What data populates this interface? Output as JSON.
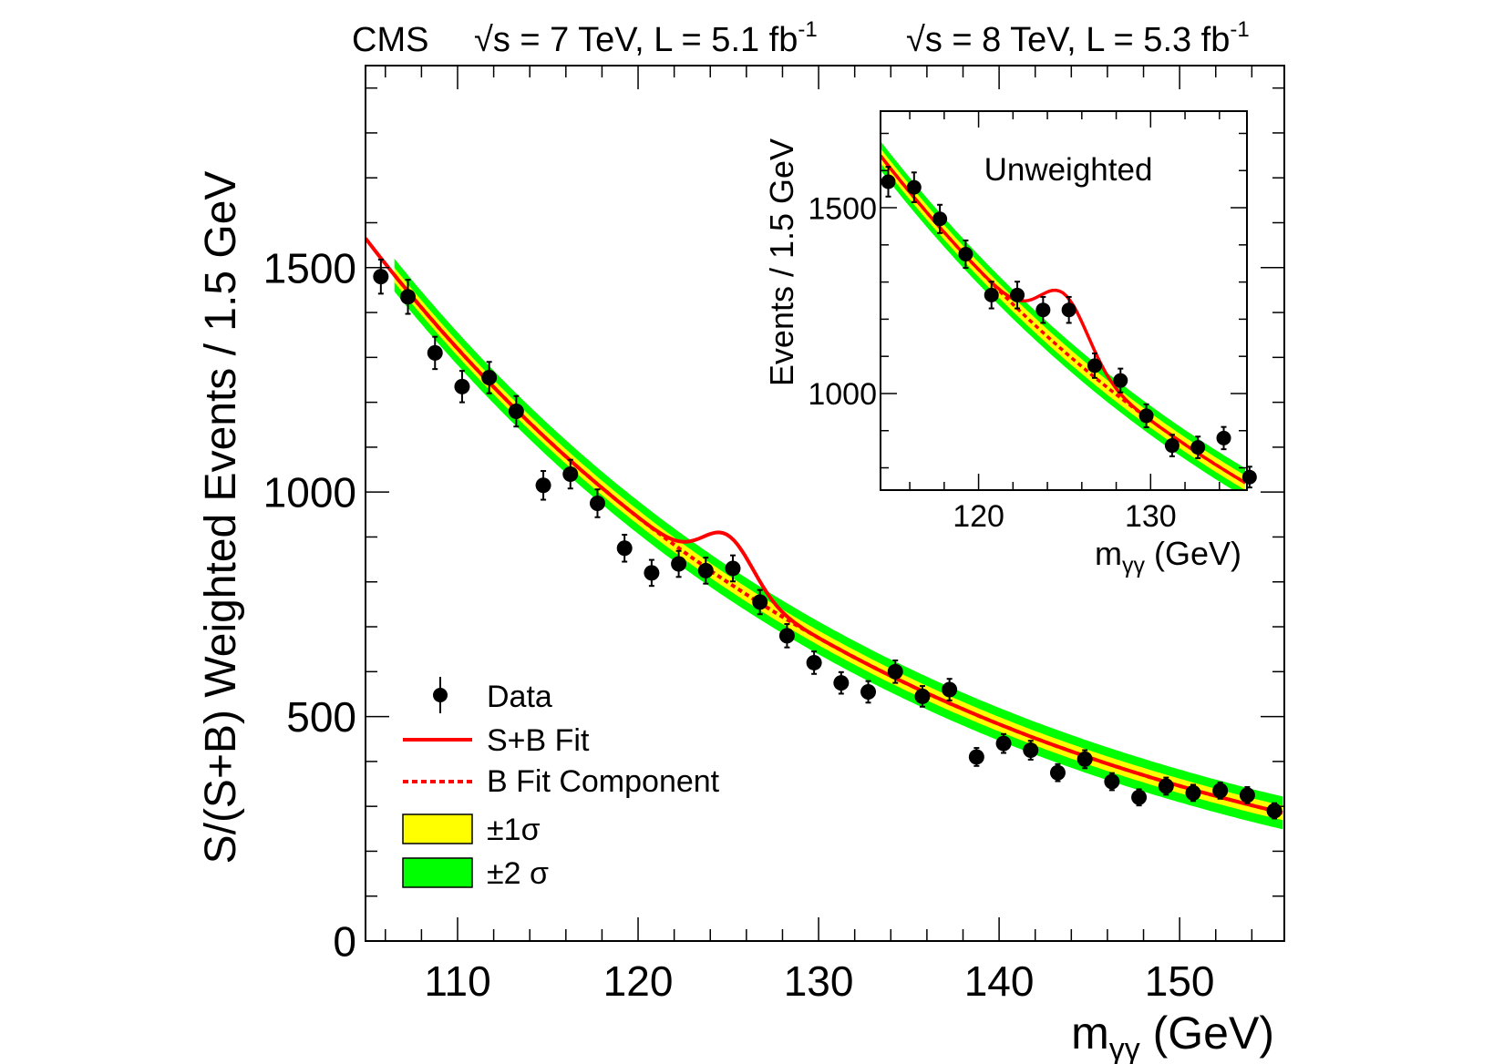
{
  "header": {
    "experiment": "CMS",
    "run1": "√s = 7 TeV, L = 5.1 fb",
    "run1_sup": "-1",
    "run2": "√s = 8 TeV, L = 5.3 fb",
    "run2_sup": "-1"
  },
  "legend": {
    "data": "Data",
    "sb_fit": "S+B Fit",
    "b_fit": "B Fit Component",
    "sigma1": "±1σ",
    "sigma2": "±2 σ"
  },
  "colors": {
    "fit": "#ff0000",
    "band1": "#ffff00",
    "band2": "#00ff00",
    "data": "#000000"
  },
  "chart_data": [
    {
      "type": "scatter",
      "title": "",
      "ylabel": "S/(S+B) Weighted Events / 1.5 GeV",
      "xlabel_main": "m",
      "xlabel_sub": "γγ",
      "xlabel_unit": " (GeV)",
      "xlim": [
        104.9,
        155.8
      ],
      "ylim": [
        0,
        1950
      ],
      "xticks": [
        110,
        120,
        130,
        140,
        150
      ],
      "yticks": [
        0,
        500,
        1000,
        1500
      ],
      "series": [
        {
          "name": "Data",
          "x": [
            105.75,
            107.25,
            108.75,
            110.25,
            111.75,
            113.25,
            114.75,
            116.25,
            117.75,
            119.25,
            120.75,
            122.25,
            123.75,
            125.25,
            126.75,
            128.25,
            129.75,
            131.25,
            132.75,
            134.25,
            135.75,
            137.25,
            138.75,
            140.25,
            141.75,
            143.25,
            144.75,
            146.25,
            147.75,
            149.25,
            150.75,
            152.25,
            153.75,
            155.25
          ],
          "y": [
            1480,
            1435,
            1310,
            1235,
            1255,
            1180,
            1015,
            1040,
            975,
            875,
            820,
            840,
            825,
            830,
            755,
            680,
            620,
            575,
            555,
            600,
            545,
            560,
            410,
            440,
            425,
            375,
            405,
            355,
            320,
            345,
            330,
            335,
            325,
            290
          ],
          "yerr": [
            38,
            38,
            36,
            35,
            35,
            34,
            32,
            32,
            31,
            30,
            29,
            29,
            29,
            29,
            27,
            26,
            25,
            24,
            24,
            25,
            23,
            24,
            20,
            21,
            21,
            19,
            20,
            19,
            18,
            19,
            18,
            18,
            18,
            17
          ]
        }
      ],
      "fit": {
        "background": {
          "a": 1560,
          "b": 0.0335,
          "x0": 105
        },
        "signal": {
          "mass": 125.0,
          "width": 1.4,
          "amplitude": 105
        },
        "band1_halfwidth": 8,
        "band2_halfwidth": 18
      }
    },
    {
      "type": "scatter",
      "title": "Unweighted",
      "ylabel": "Events / 1.5 GeV",
      "xlabel_main": "m",
      "xlabel_sub": "γγ",
      "xlabel_unit": " (GeV)",
      "xlim": [
        114.3,
        135.6
      ],
      "ylim": [
        740,
        1760
      ],
      "xticks": [
        120,
        130
      ],
      "yticks": [
        1000,
        1500
      ],
      "series": [
        {
          "name": "Data",
          "x": [
            114.75,
            116.25,
            117.75,
            119.25,
            120.75,
            122.25,
            123.75,
            125.25,
            126.75,
            128.25,
            129.75,
            131.25,
            132.75,
            134.25,
            135.75
          ],
          "y": [
            1570,
            1555,
            1470,
            1375,
            1265,
            1265,
            1225,
            1225,
            1075,
            1035,
            940,
            860,
            855,
            880,
            775
          ],
          "yerr": [
            40,
            40,
            38,
            37,
            36,
            36,
            35,
            35,
            33,
            32,
            31,
            29,
            29,
            30,
            28
          ]
        }
      ],
      "fit": {
        "background": {
          "a": 1640,
          "b": 0.0363,
          "x0": 114.3
        },
        "signal": {
          "mass": 125.0,
          "width": 1.4,
          "amplitude": 155
        },
        "band1_halfwidth": 8,
        "band2_halfwidth": 16
      }
    }
  ]
}
